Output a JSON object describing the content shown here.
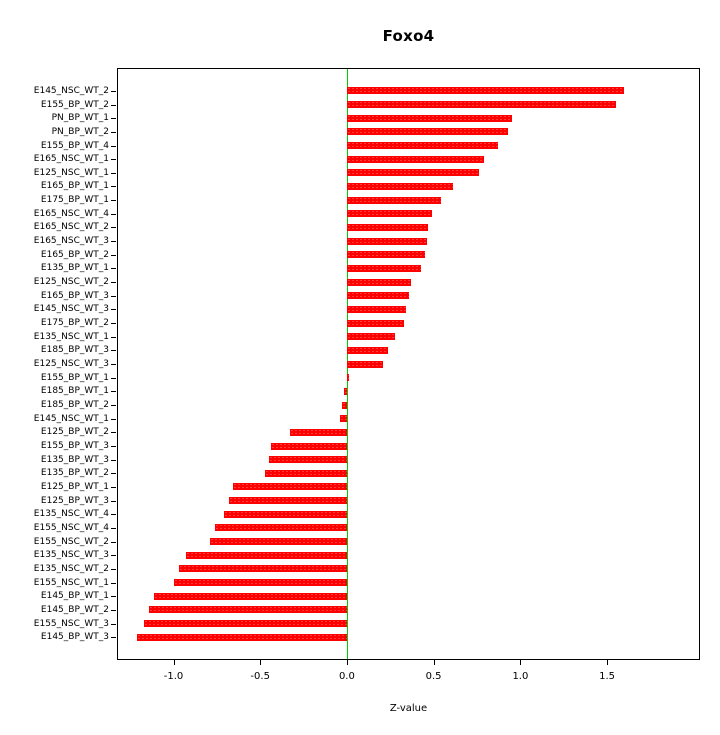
{
  "title": "Foxo4",
  "chart_data": {
    "type": "bar",
    "orientation": "horizontal",
    "title": "Foxo4",
    "xlabel": "Z-value",
    "ylabel": "",
    "xlim": [
      -1.32,
      2.03
    ],
    "x_ticks": [
      -1.0,
      -0.5,
      0.0,
      0.5,
      1.0,
      1.5
    ],
    "x_tick_labels": [
      "-1.0",
      "-0.5",
      "0.0",
      "0.5",
      "1.0",
      "1.5"
    ],
    "grid": false,
    "legend": false,
    "zero_line": 0,
    "bar_color": "#FF0000",
    "zero_line_color": "#00CC00",
    "categories": [
      "E145_NSC_WT_2",
      "E155_BP_WT_2",
      "PN_BP_WT_1",
      "PN_BP_WT_2",
      "E155_BP_WT_4",
      "E165_NSC_WT_1",
      "E125_NSC_WT_1",
      "E165_BP_WT_1",
      "E175_BP_WT_1",
      "E165_NSC_WT_4",
      "E165_NSC_WT_2",
      "E165_NSC_WT_3",
      "E165_BP_WT_2",
      "E135_BP_WT_1",
      "E125_NSC_WT_2",
      "E165_BP_WT_3",
      "E145_NSC_WT_3",
      "E175_BP_WT_2",
      "E135_NSC_WT_1",
      "E185_BP_WT_3",
      "E125_NSC_WT_3",
      "E155_BP_WT_1",
      "E185_BP_WT_1",
      "E185_BP_WT_2",
      "E145_NSC_WT_1",
      "E125_BP_WT_2",
      "E155_BP_WT_3",
      "E135_BP_WT_3",
      "E135_BP_WT_2",
      "E125_BP_WT_1",
      "E125_BP_WT_3",
      "E135_NSC_WT_4",
      "E155_NSC_WT_4",
      "E155_NSC_WT_2",
      "E135_NSC_WT_3",
      "E135_NSC_WT_2",
      "E155_NSC_WT_1",
      "E145_BP_WT_1",
      "E145_BP_WT_2",
      "E155_NSC_WT_3",
      "E145_BP_WT_3"
    ],
    "values": [
      1.6,
      1.55,
      0.95,
      0.93,
      0.87,
      0.79,
      0.76,
      0.61,
      0.54,
      0.49,
      0.47,
      0.46,
      0.45,
      0.43,
      0.37,
      0.36,
      0.34,
      0.33,
      0.28,
      0.24,
      0.21,
      0.01,
      -0.02,
      -0.03,
      -0.04,
      -0.33,
      -0.44,
      -0.45,
      -0.47,
      -0.66,
      -0.68,
      -0.71,
      -0.76,
      -0.79,
      -0.93,
      -0.97,
      -1.0,
      -1.11,
      -1.14,
      -1.17,
      -1.21
    ]
  }
}
